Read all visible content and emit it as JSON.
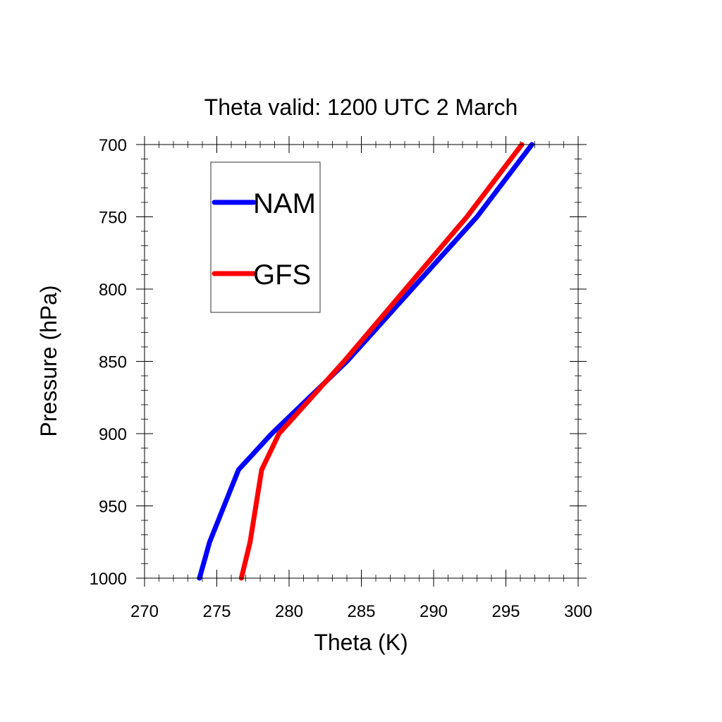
{
  "chart_data": {
    "type": "line",
    "title": "Theta valid: 1200 UTC 2 March",
    "xlabel": "Theta (K)",
    "ylabel": "Pressure (hPa)",
    "xlim": [
      270,
      300
    ],
    "ylim": [
      1000,
      700
    ],
    "y_inverted": true,
    "xticks": [
      "270",
      "275",
      "280",
      "285",
      "290",
      "295",
      "300"
    ],
    "yticks": [
      "700",
      "750",
      "800",
      "850",
      "900",
      "950",
      "1000"
    ],
    "grid": false,
    "legend_position": "top-left",
    "series": [
      {
        "name": "NAM",
        "color": "#0000ff",
        "points": [
          {
            "x": 273.8,
            "y": 1000
          },
          {
            "x": 274.5,
            "y": 975
          },
          {
            "x": 276.5,
            "y": 925
          },
          {
            "x": 278.8,
            "y": 900
          },
          {
            "x": 284.0,
            "y": 850
          },
          {
            "x": 293.0,
            "y": 750
          },
          {
            "x": 296.8,
            "y": 700
          }
        ]
      },
      {
        "name": "GFS",
        "color": "#ff0000",
        "points": [
          {
            "x": 276.7,
            "y": 1000
          },
          {
            "x": 277.3,
            "y": 975
          },
          {
            "x": 278.1,
            "y": 925
          },
          {
            "x": 279.3,
            "y": 900
          },
          {
            "x": 283.8,
            "y": 850
          },
          {
            "x": 292.3,
            "y": 750
          },
          {
            "x": 296.1,
            "y": 700
          }
        ]
      }
    ]
  }
}
